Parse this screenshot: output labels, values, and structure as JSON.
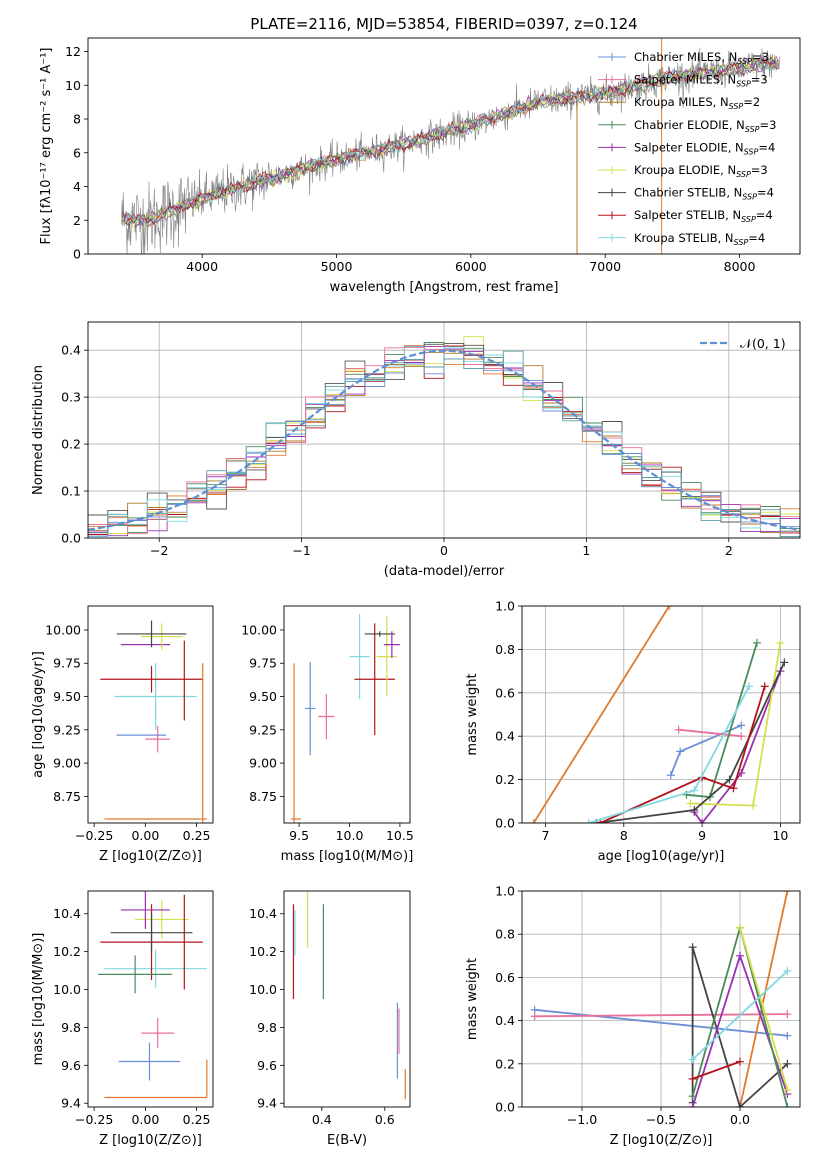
{
  "figure": {
    "title": "PLATE=2116, MJD=53854, FIBERID=0397, z=0.124"
  },
  "model_colors": [
    "#5aa0a6",
    "#e07a2e",
    "#b07b25",
    "#4a8a5a",
    "#9b30b0",
    "#d4e04a",
    "#555555",
    "#b3141c",
    "#7fd9e0",
    "#e8709c",
    "#6b8fd6"
  ],
  "chart_data": [
    {
      "id": "spectrum",
      "type": "line",
      "title": "PLATE=2116, MJD=53854, FIBERID=0397, z=0.124",
      "xlabel": "wavelength [Angstrom, rest frame]",
      "ylabel": "Flux [fλ10⁻¹⁷ erg cm⁻² s⁻¹ A⁻¹]",
      "xlim": [
        3150,
        8450
      ],
      "ylim": [
        0,
        12.8
      ],
      "xticks": [
        4000,
        5000,
        6000,
        7000,
        8000
      ],
      "yticks": [
        0,
        2,
        4,
        6,
        8,
        10,
        12
      ],
      "legend_position": "top-right",
      "data_color": "#808080",
      "data_anchor": {
        "x": [
          3400,
          3600,
          4000,
          4500,
          5000,
          5500,
          6000,
          6500,
          7000,
          7500,
          8000,
          8200
        ],
        "y": [
          2.1,
          2.0,
          3.3,
          4.5,
          5.6,
          6.5,
          7.6,
          9.0,
          9.5,
          10.5,
          11.0,
          11.3
        ]
      },
      "model_colors": [
        "#6b8fd6",
        "#e8709c",
        "#b07b25",
        "#4a8a5a",
        "#9b30b0",
        "#d4e04a",
        "#444444",
        "#b3141c",
        "#7fd9e0"
      ],
      "legend": [
        "Chabrier MILES, N_SSP=3",
        "Salpeter MILES, N_SSP=3",
        "Kroupa MILES, N_SSP=2",
        "Chabrier ELODIE, N_SSP=3",
        "Salpeter ELODIE, N_SSP=4",
        "Kroupa ELODIE, N_SSP=3",
        "Chabrier STELIB, N_SSP=4",
        "Salpeter STELIB, N_SSP=4",
        "Kroupa STELIB, N_SSP=4"
      ]
    },
    {
      "id": "residuals",
      "type": "histogram",
      "xlabel": "(data-model)/error",
      "ylabel": "Normed distribution",
      "xlim": [
        -2.5,
        2.5
      ],
      "ylim": [
        0,
        0.46
      ],
      "xticks": [
        -2,
        -1,
        0,
        1,
        2
      ],
      "yticks": [
        0.0,
        0.1,
        0.2,
        0.3,
        0.4
      ],
      "grid": true,
      "legend_position": "top-right",
      "reference_curve": {
        "name": "N(0,1)",
        "label_text": "𝒩(0, 1)",
        "color": "#5b8fd6"
      }
    },
    {
      "id": "age_vs_Z",
      "type": "errorbar",
      "xlabel": "Z [log10(Z/Z⊙)]",
      "ylabel": "age  [log10(age/yr)]",
      "xlim": [
        -0.28,
        0.33
      ],
      "ylim": [
        8.55,
        10.18
      ],
      "xticks": [
        -0.25,
        0.0,
        0.25
      ],
      "yticks": [
        8.75,
        9.0,
        9.25,
        9.5,
        9.75,
        10.0
      ],
      "points": [
        {
          "x": 0.05,
          "xerr": 0.25,
          "y": 8.58,
          "yerr": 0.0,
          "color": "#e07a2e"
        },
        {
          "x": -0.02,
          "xerr": 0.12,
          "y": 9.21,
          "yerr": 0.0,
          "color": "#6b8fd6"
        },
        {
          "x": 0.06,
          "xerr": 0.06,
          "y": 9.18,
          "yerr": 0.1,
          "color": "#e8709c"
        },
        {
          "x": 0.05,
          "xerr": 0.2,
          "y": 9.5,
          "yerr": 0.25,
          "color": "#7fd9e0"
        },
        {
          "x": 0.03,
          "xerr": 0.25,
          "y": 9.63,
          "yerr": 0.1,
          "color": "#b3141c"
        },
        {
          "x": 0.0,
          "xerr": 0.12,
          "y": 9.89,
          "yerr": 0.0,
          "color": "#9b30b0"
        },
        {
          "x": 0.08,
          "xerr": 0.1,
          "y": 9.95,
          "yerr": 0.1,
          "color": "#d4e04a"
        },
        {
          "x": 0.03,
          "xerr": 0.17,
          "y": 9.97,
          "yerr": 0.1,
          "color": "#444444"
        },
        {
          "x": 0.19,
          "xerr": 0.0,
          "y": 9.62,
          "yerr": 0.3,
          "color": "#b3141c"
        },
        {
          "x": 0.28,
          "xerr": 0.0,
          "y": 9.15,
          "yerr": 0.6,
          "color": "#e07a2e"
        }
      ]
    },
    {
      "id": "age_vs_mass",
      "type": "errorbar",
      "xlabel": "mass [log10(M/M⊙)]",
      "ylabel": "",
      "xlim": [
        9.35,
        10.6
      ],
      "ylim": [
        8.55,
        10.18
      ],
      "xticks": [
        9.5,
        10.0,
        10.5
      ],
      "yticks": [
        8.75,
        9.0,
        9.25,
        9.5,
        9.75,
        10.0
      ],
      "points": [
        {
          "x": 9.45,
          "xerr": 0.0,
          "y": 9.15,
          "yerr": 0.6,
          "color": "#e07a2e"
        },
        {
          "x": 9.47,
          "xerr": 0.05,
          "y": 8.58,
          "yerr": 0.0,
          "color": "#e07a2e"
        },
        {
          "x": 9.61,
          "xerr": 0.05,
          "y": 9.41,
          "yerr": 0.35,
          "color": "#6b8fd6"
        },
        {
          "x": 9.77,
          "xerr": 0.08,
          "y": 9.35,
          "yerr": 0.17,
          "color": "#e8709c"
        },
        {
          "x": 10.1,
          "xerr": 0.1,
          "y": 9.8,
          "yerr": 0.32,
          "color": "#7fd9e0"
        },
        {
          "x": 10.25,
          "xerr": 0.2,
          "y": 9.63,
          "yerr": 0.42,
          "color": "#b3141c"
        },
        {
          "x": 10.37,
          "xerr": 0.1,
          "y": 9.8,
          "yerr": 0.3,
          "color": "#d4e04a"
        },
        {
          "x": 10.3,
          "xerr": 0.15,
          "y": 9.97,
          "yerr": 0.02,
          "color": "#444444"
        },
        {
          "x": 10.42,
          "xerr": 0.08,
          "y": 9.89,
          "yerr": 0.1,
          "color": "#9b30b0"
        }
      ]
    },
    {
      "id": "weight_vs_age",
      "type": "line",
      "xlabel": "age  [log10(age/yr)]",
      "ylabel": "mass weight",
      "xlim": [
        6.7,
        10.25
      ],
      "ylim": [
        0,
        1.0
      ],
      "xticks": [
        7,
        8,
        9,
        10
      ],
      "yticks": [
        0.0,
        0.2,
        0.4,
        0.6,
        0.8,
        1.0
      ],
      "grid": true,
      "series": [
        {
          "color": "#e07a2e",
          "x": [
            6.85,
            8.58
          ],
          "y": [
            0.0,
            1.0
          ]
        },
        {
          "color": "#6b8fd6",
          "x": [
            8.6,
            8.72,
            9.5
          ],
          "y": [
            0.22,
            0.33,
            0.45
          ]
        },
        {
          "color": "#e8709c",
          "x": [
            8.7,
            9.5
          ],
          "y": [
            0.43,
            0.4
          ]
        },
        {
          "color": "#4a8a5a",
          "x": [
            8.8,
            9.1,
            9.7
          ],
          "y": [
            0.13,
            0.12,
            0.83
          ]
        },
        {
          "color": "#9b30b0",
          "x": [
            8.9,
            9.0,
            9.5,
            10.0
          ],
          "y": [
            0.05,
            0.0,
            0.23,
            0.7
          ]
        },
        {
          "color": "#d4e04a",
          "x": [
            8.85,
            9.65,
            10.0
          ],
          "y": [
            0.09,
            0.08,
            0.83
          ]
        },
        {
          "color": "#444444",
          "x": [
            7.65,
            8.9,
            9.35,
            10.05
          ],
          "y": [
            0.0,
            0.06,
            0.2,
            0.74
          ]
        },
        {
          "color": "#b3141c",
          "x": [
            7.7,
            9.0,
            9.4,
            9.8
          ],
          "y": [
            0.0,
            0.21,
            0.16,
            0.63
          ]
        },
        {
          "color": "#7fd9e0",
          "x": [
            7.55,
            8.9,
            9.6
          ],
          "y": [
            0.0,
            0.15,
            0.63
          ]
        }
      ]
    },
    {
      "id": "mass_vs_Z",
      "type": "errorbar",
      "xlabel": "Z [log10(Z/Z⊙)]",
      "ylabel": "mass [log10(M/M⊙)]",
      "xlim": [
        -0.28,
        0.33
      ],
      "ylim": [
        9.38,
        10.52
      ],
      "xticks": [
        -0.25,
        0.0,
        0.25
      ],
      "yticks": [
        9.4,
        9.6,
        9.8,
        10.0,
        10.2,
        10.4
      ],
      "points": [
        {
          "x": 0.05,
          "xerr": 0.25,
          "y": 9.43,
          "yerr": 0.0,
          "color": "#e07a2e"
        },
        {
          "x": 0.3,
          "xerr": 0.0,
          "y": 9.53,
          "yerr": 0.1,
          "color": "#e07a2e"
        },
        {
          "x": 0.02,
          "xerr": 0.15,
          "y": 9.62,
          "yerr": 0.1,
          "color": "#6b8fd6"
        },
        {
          "x": 0.06,
          "xerr": 0.08,
          "y": 9.77,
          "yerr": 0.08,
          "color": "#e8709c"
        },
        {
          "x": 0.05,
          "xerr": 0.25,
          "y": 10.11,
          "yerr": 0.1,
          "color": "#7fd9e0"
        },
        {
          "x": 0.03,
          "xerr": 0.25,
          "y": 10.25,
          "yerr": 0.2,
          "color": "#b3141c"
        },
        {
          "x": 0.08,
          "xerr": 0.13,
          "y": 10.37,
          "yerr": 0.1,
          "color": "#d4e04a"
        },
        {
          "x": 0.03,
          "xerr": 0.2,
          "y": 10.3,
          "yerr": 0.1,
          "color": "#444444"
        },
        {
          "x": 0.0,
          "xerr": 0.12,
          "y": 10.42,
          "yerr": 0.1,
          "color": "#9b30b0"
        },
        {
          "x": -0.05,
          "xerr": 0.18,
          "y": 10.08,
          "yerr": 0.1,
          "color": "#4a8a5a"
        },
        {
          "x": 0.19,
          "xerr": 0.0,
          "y": 10.25,
          "yerr": 0.25,
          "color": "#b3141c"
        }
      ]
    },
    {
      "id": "mass_vs_EBV",
      "type": "errorbar",
      "xlabel": "E(B-V)",
      "ylabel": "",
      "xlim": [
        0.28,
        0.68
      ],
      "ylim": [
        9.38,
        10.52
      ],
      "xticks": [
        0.4,
        0.6
      ],
      "yticks": [
        9.4,
        9.6,
        9.8,
        10.0,
        10.2,
        10.4
      ],
      "points": [
        {
          "x": 0.31,
          "xerr": 0.0,
          "y": 10.2,
          "yerr": 0.25,
          "color": "#b3141c"
        },
        {
          "x": 0.315,
          "xerr": 0.0,
          "y": 10.3,
          "yerr": 0.12,
          "color": "#7fd9e0"
        },
        {
          "x": 0.355,
          "xerr": 0.0,
          "y": 10.37,
          "yerr": 0.15,
          "color": "#d4e04a"
        },
        {
          "x": 0.405,
          "xerr": 0.0,
          "y": 10.2,
          "yerr": 0.25,
          "color": "#4a8a5a"
        },
        {
          "x": 0.64,
          "xerr": 0.0,
          "y": 9.73,
          "yerr": 0.2,
          "color": "#6b8fd6"
        },
        {
          "x": 0.645,
          "xerr": 0.0,
          "y": 9.78,
          "yerr": 0.12,
          "color": "#e8709c"
        },
        {
          "x": 0.665,
          "xerr": 0.0,
          "y": 9.5,
          "yerr": 0.08,
          "color": "#e07a2e"
        }
      ]
    },
    {
      "id": "weight_vs_Z",
      "type": "line",
      "xlabel": "Z [log10(Z/Z⊙)]",
      "ylabel": "mass weight",
      "xlim": [
        -1.38,
        0.38
      ],
      "ylim": [
        0,
        1.0
      ],
      "xticks": [
        -1.0,
        -0.5,
        0.0
      ],
      "yticks": [
        0.0,
        0.2,
        0.4,
        0.6,
        0.8,
        1.0
      ],
      "grid": true,
      "series": [
        {
          "color": "#6b8fd6",
          "x": [
            -1.3,
            0.3
          ],
          "y": [
            0.45,
            0.33
          ]
        },
        {
          "color": "#e8709c",
          "x": [
            -1.3,
            0.3
          ],
          "y": [
            0.42,
            0.43
          ]
        },
        {
          "color": "#e07a2e",
          "x": [
            0.0,
            0.3
          ],
          "y": [
            0.0,
            1.0
          ]
        },
        {
          "color": "#444444",
          "x": [
            -0.3,
            -0.3,
            0.0,
            0.3
          ],
          "y": [
            0.02,
            0.74,
            0.0,
            0.2
          ]
        },
        {
          "color": "#9b30b0",
          "x": [
            -0.3,
            0.0,
            0.3
          ],
          "y": [
            0.0,
            0.7,
            0.06
          ]
        },
        {
          "color": "#4a8a5a",
          "x": [
            -0.3,
            0.0,
            0.3
          ],
          "y": [
            0.05,
            0.83,
            0.0
          ]
        },
        {
          "color": "#b3141c",
          "x": [
            -0.3,
            0.0
          ],
          "y": [
            0.13,
            0.21
          ]
        },
        {
          "color": "#d4e04a",
          "x": [
            0.0,
            0.3
          ],
          "y": [
            0.83,
            0.08
          ]
        },
        {
          "color": "#7fd9e0",
          "x": [
            -0.3,
            0.3
          ],
          "y": [
            0.22,
            0.63
          ]
        }
      ]
    }
  ]
}
